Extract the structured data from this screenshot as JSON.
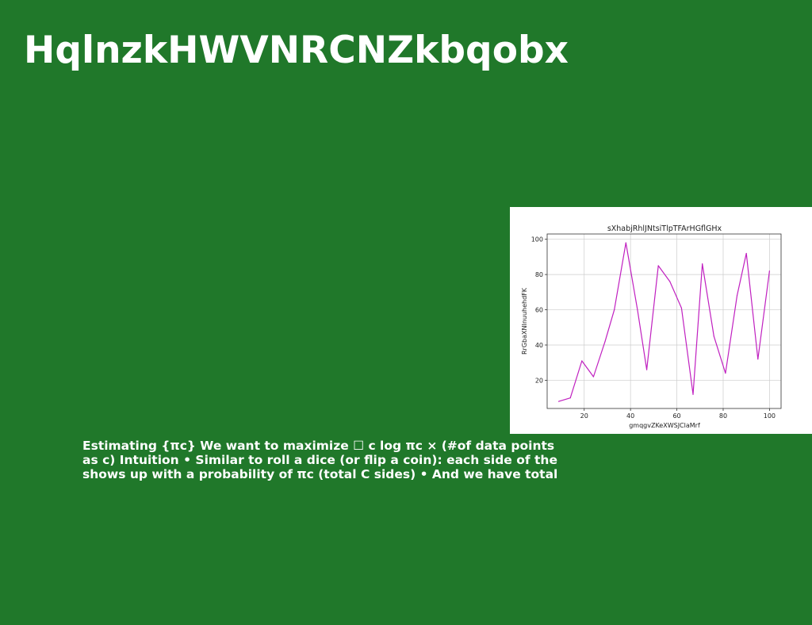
{
  "slide": {
    "title": "HqlnzkHWVNRCNZkbqobx",
    "body_lines": [
      "Estimating {πc} We want to maximize ☐ c log πc × (#of data points",
      "as c) Intuition • Similar to roll a dice (or flip a coin): each side of the",
      "shows up with a probability of πc (total C sides) • And we have total"
    ]
  },
  "colors": {
    "background": "#20782a",
    "line": "#c020c0",
    "panel": "#ffffff"
  },
  "chart_data": {
    "type": "line",
    "title": "sXhabjRhlJNtsiTlpTFArHGflGHx",
    "xlabel": "gmqgvZKeXWSJClaMrf",
    "ylabel": "RrGbaXNInuuhehdFK",
    "xlim": [
      4,
      105
    ],
    "ylim": [
      4,
      103
    ],
    "xticks": [
      20,
      40,
      60,
      80,
      100
    ],
    "yticks": [
      20,
      40,
      60,
      80,
      100
    ],
    "grid": true,
    "series": [
      {
        "x": [
          9,
          14,
          19,
          24,
          29,
          33,
          38,
          43,
          47,
          52,
          57,
          62,
          67,
          71,
          76,
          81,
          86,
          90,
          95,
          100
        ],
        "y": [
          8,
          10,
          31,
          22,
          42,
          60,
          98,
          60,
          26,
          85,
          76,
          61,
          12,
          86,
          45,
          24,
          68,
          92,
          32,
          82
        ]
      }
    ]
  }
}
